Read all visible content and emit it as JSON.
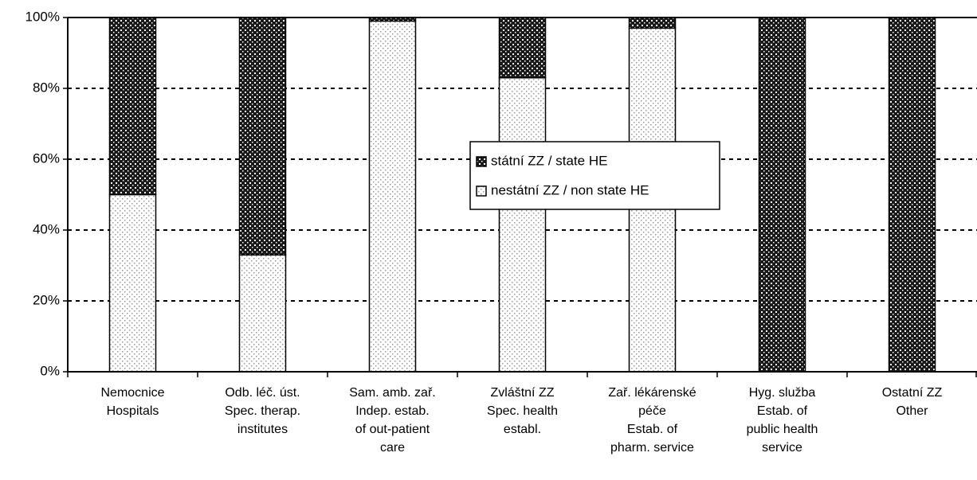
{
  "chart_data": {
    "type": "stacked_bar",
    "categories": [
      [
        "Nemocnice",
        "Hospitals"
      ],
      [
        "Odb. léč. úst.",
        "Spec. therap.",
        "institutes"
      ],
      [
        "Sam. amb. zař.",
        "Indep. estab.",
        "of out-patient",
        "care"
      ],
      [
        "Zvláštní ZZ",
        "Spec. health",
        "establ."
      ],
      [
        "Zař. lékárenské",
        "péče",
        "Estab. of",
        "pharm. service"
      ],
      [
        "Hyg. služba",
        "Estab. of",
        "public health",
        "service"
      ],
      [
        "Ostatní ZZ",
        "Other"
      ]
    ],
    "series": [
      {
        "name": "nestátní ZZ / non state HE",
        "color": "#9a9a9a",
        "values": [
          50,
          33,
          99,
          83,
          97,
          0,
          0
        ]
      },
      {
        "name": "státní ZZ / state HE",
        "color": "#1a1a1a",
        "values": [
          50,
          67,
          1,
          17,
          3,
          100,
          100
        ]
      }
    ],
    "ylim": [
      0,
      100
    ],
    "yticks": [
      {
        "value": 0,
        "label": "0%"
      },
      {
        "value": 20,
        "label": "20%"
      },
      {
        "value": 40,
        "label": "40%"
      },
      {
        "value": 60,
        "label": "60%"
      },
      {
        "value": 80,
        "label": "80%"
      },
      {
        "value": 100,
        "label": "100%"
      }
    ],
    "grid": true
  }
}
